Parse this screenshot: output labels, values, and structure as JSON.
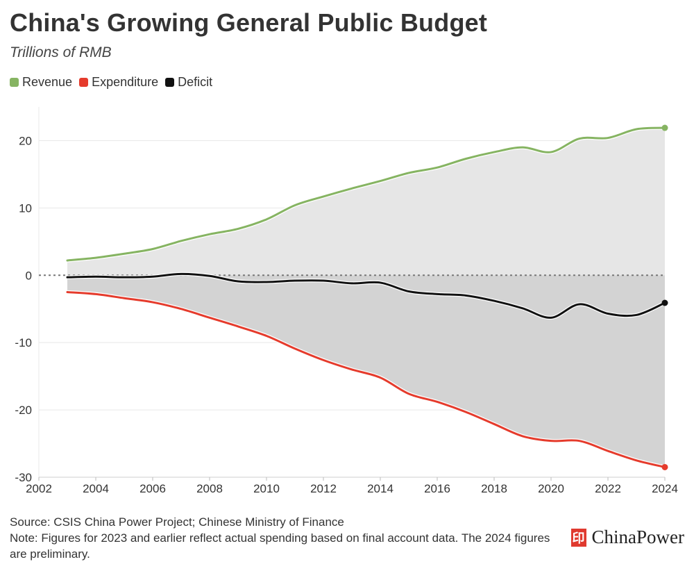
{
  "header": {
    "title": "China's Growing General Public Budget",
    "subtitle": "Trillions of RMB"
  },
  "legend": [
    {
      "label": "Revenue",
      "color": "#86b462"
    },
    {
      "label": "Expenditure",
      "color": "#e53b2c"
    },
    {
      "label": "Deficit",
      "color": "#111111"
    }
  ],
  "footer": {
    "source": "Source: CSIS China Power Project; Chinese Ministry of Finance",
    "note": "Note: Figures for 2023 and earlier reflect actual spending based on final account data. The 2024 figures are preliminary."
  },
  "brand": {
    "name": "ChinaPower",
    "icon": "chinapower-logo-icon"
  },
  "colors": {
    "revenue": "#86b462",
    "expenditure": "#e53b2c",
    "deficit": "#111111",
    "area_top": "#e6e6e6",
    "area_bottom": "#d3d3d3"
  },
  "chart_data": {
    "type": "area",
    "title": "China's Growing General Public Budget",
    "ylabel": "Trillions of RMB",
    "xlabel": "",
    "xlim": [
      2002,
      2024
    ],
    "ylim": [
      -30,
      25
    ],
    "x_ticks": [
      2002,
      2004,
      2006,
      2008,
      2010,
      2012,
      2014,
      2016,
      2018,
      2020,
      2022,
      2024
    ],
    "y_ticks": [
      -30,
      -20,
      -10,
      0,
      10,
      20
    ],
    "x": [
      2003,
      2004,
      2005,
      2006,
      2007,
      2008,
      2009,
      2010,
      2011,
      2012,
      2013,
      2014,
      2015,
      2016,
      2017,
      2018,
      2019,
      2020,
      2021,
      2022,
      2023,
      2024
    ],
    "series": [
      {
        "name": "Revenue",
        "values": [
          2.2,
          2.6,
          3.2,
          3.9,
          5.1,
          6.1,
          6.9,
          8.3,
          10.4,
          11.7,
          12.9,
          14.0,
          15.2,
          16.0,
          17.3,
          18.3,
          19.0,
          18.3,
          20.3,
          20.4,
          21.7,
          21.9
        ]
      },
      {
        "name": "Expenditure",
        "values": [
          -2.5,
          -2.8,
          -3.4,
          -4.0,
          -5.0,
          -6.3,
          -7.6,
          -9.0,
          -10.9,
          -12.6,
          -14.0,
          -15.2,
          -17.6,
          -18.8,
          -20.3,
          -22.1,
          -23.9,
          -24.6,
          -24.6,
          -26.1,
          -27.5,
          -28.5
        ]
      },
      {
        "name": "Deficit",
        "values": [
          -0.3,
          -0.2,
          -0.3,
          -0.2,
          0.2,
          -0.1,
          -0.9,
          -1.0,
          -0.8,
          -0.8,
          -1.2,
          -1.1,
          -2.4,
          -2.8,
          -3.0,
          -3.8,
          -4.9,
          -6.3,
          -4.3,
          -5.7,
          -5.9,
          -4.1
        ]
      }
    ]
  }
}
